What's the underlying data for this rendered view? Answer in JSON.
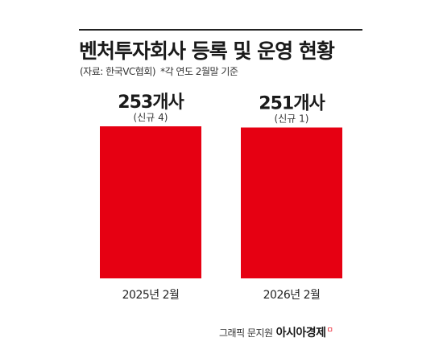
{
  "header": {
    "title": "벤처투자회사 등록 및 운영 현황",
    "source": "(자료: 한국VC협회)",
    "note": "*각 연도 2월말 기준"
  },
  "credit": {
    "text": "그래픽 문지원",
    "brand": "아시아경제",
    "brand_mark": "ㅁ"
  },
  "colors": {
    "bar": "#e60012",
    "text": "#1a1a1a",
    "rule": "#222222"
  },
  "chart_data": {
    "type": "bar",
    "title": "벤처투자회사 등록 및 운영 현황",
    "categories": [
      "2025년 2월",
      "2026년 2월"
    ],
    "values": [
      253,
      251
    ],
    "value_labels": [
      "253개사",
      "251개사"
    ],
    "sub_labels": [
      "(신규 4)",
      "(신규 1)"
    ],
    "unit": "개사",
    "ylim": [
      0,
      253
    ],
    "grid": false,
    "legend": "none"
  }
}
